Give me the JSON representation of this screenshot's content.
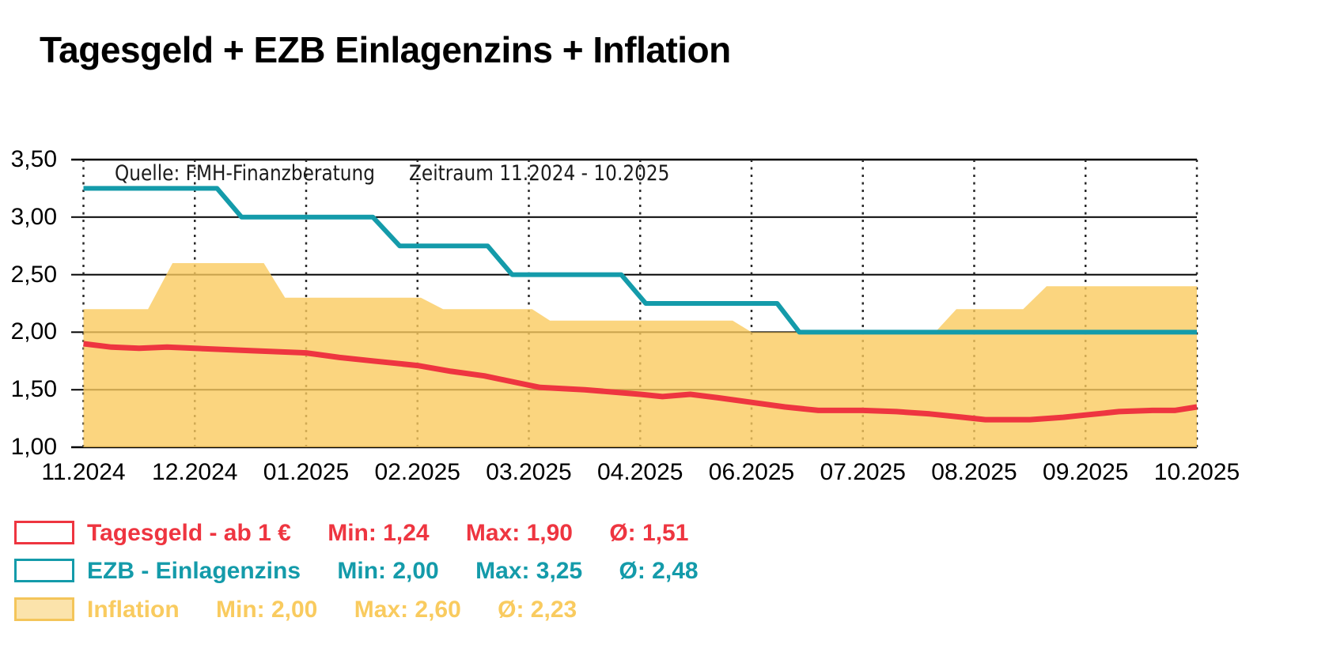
{
  "title": "Tagesgeld + EZB Einlagenzins + Inflation",
  "annotation": {
    "source": "Quelle: FMH-Finanzberatung",
    "period": "Zeitraum 11.2024 - 10.2025"
  },
  "chart_data": {
    "type": "line",
    "title": "Tagesgeld + EZB Einlagenzins + Inflation",
    "x_tick_labels": [
      "11.2024",
      "12.2024",
      "01.2025",
      "02.2025",
      "03.2025",
      "04.2025",
      "06.2025",
      "07.2025",
      "08.2025",
      "09.2025",
      "10.2025"
    ],
    "y_tick_labels": [
      "3,50",
      "3,00",
      "2,50",
      "2,00",
      "1,50",
      "1,00"
    ],
    "y_tick_values": [
      3.5,
      3.0,
      2.5,
      2.0,
      1.5,
      1.0
    ],
    "ylim": [
      1.0,
      3.5
    ],
    "grid": {
      "horizontal": "solid",
      "vertical": "dotted"
    },
    "x_unit_note": "x in tick units, 0 = 11.2024 tick, 10 = 10.2025 tick",
    "series": [
      {
        "name": "Inflation",
        "style": "area",
        "color": "#F9CB5F",
        "fill": "rgba(250,203,95,0.8)",
        "min": 2.0,
        "max": 2.6,
        "avg": 2.23,
        "points": [
          [
            0,
            2.2
          ],
          [
            0.58,
            2.2
          ],
          [
            0.8,
            2.6
          ],
          [
            1.62,
            2.6
          ],
          [
            1.81,
            2.3
          ],
          [
            3.03,
            2.3
          ],
          [
            3.23,
            2.2
          ],
          [
            4.03,
            2.2
          ],
          [
            4.19,
            2.1
          ],
          [
            5.83,
            2.1
          ],
          [
            6.0,
            2.0
          ],
          [
            7.65,
            2.0
          ],
          [
            7.84,
            2.2
          ],
          [
            8.44,
            2.2
          ],
          [
            8.65,
            2.4
          ],
          [
            10,
            2.4
          ]
        ]
      },
      {
        "name": "EZB - Einlagenzins",
        "style": "line",
        "color": "#149BAA",
        "width": 6,
        "min": 2.0,
        "max": 3.25,
        "avg": 2.48,
        "points": [
          [
            0,
            3.25
          ],
          [
            1.2,
            3.25
          ],
          [
            1.42,
            3.0
          ],
          [
            2.6,
            3.0
          ],
          [
            2.84,
            2.75
          ],
          [
            3.63,
            2.75
          ],
          [
            3.85,
            2.5
          ],
          [
            4.83,
            2.5
          ],
          [
            5.05,
            2.25
          ],
          [
            6.23,
            2.25
          ],
          [
            6.43,
            2.0
          ],
          [
            10,
            2.0
          ]
        ]
      },
      {
        "name": "Tagesgeld - ab 1 €",
        "style": "line",
        "color": "#EE3540",
        "width": 7,
        "min": 1.24,
        "max": 1.9,
        "avg": 1.51,
        "points": [
          [
            0,
            1.9
          ],
          [
            0.25,
            1.87
          ],
          [
            0.5,
            1.86
          ],
          [
            0.75,
            1.87
          ],
          [
            1.0,
            1.86
          ],
          [
            1.5,
            1.84
          ],
          [
            2.0,
            1.82
          ],
          [
            2.3,
            1.78
          ],
          [
            2.6,
            1.75
          ],
          [
            3.0,
            1.71
          ],
          [
            3.3,
            1.66
          ],
          [
            3.6,
            1.62
          ],
          [
            3.9,
            1.56
          ],
          [
            4.1,
            1.52
          ],
          [
            4.5,
            1.5
          ],
          [
            5.0,
            1.46
          ],
          [
            5.2,
            1.44
          ],
          [
            5.45,
            1.46
          ],
          [
            5.7,
            1.43
          ],
          [
            6.0,
            1.39
          ],
          [
            6.3,
            1.35
          ],
          [
            6.6,
            1.32
          ],
          [
            7.0,
            1.32
          ],
          [
            7.3,
            1.31
          ],
          [
            7.6,
            1.29
          ],
          [
            7.9,
            1.26
          ],
          [
            8.1,
            1.24
          ],
          [
            8.5,
            1.24
          ],
          [
            8.8,
            1.26
          ],
          [
            9.0,
            1.28
          ],
          [
            9.3,
            1.31
          ],
          [
            9.6,
            1.32
          ],
          [
            9.8,
            1.32
          ],
          [
            10,
            1.35
          ]
        ]
      }
    ]
  },
  "legend": {
    "rows": [
      {
        "label": "Tagesgeld - ab 1 €",
        "min": "Min: 1,24",
        "max": "Max: 1,90",
        "avg": "Ø: 1,51",
        "color": "#EE3540",
        "swatch_fill": "#FFFFFF",
        "swatch_border": "#EE3540"
      },
      {
        "label": "EZB - Einlagenzins",
        "min": "Min: 2,00",
        "max": "Max: 3,25",
        "avg": "Ø: 2,48",
        "color": "#149BAA",
        "swatch_fill": "#FFFFFF",
        "swatch_border": "#149BAA"
      },
      {
        "label": "Inflation",
        "min": "Min: 2,00",
        "max": "Max: 2,60",
        "avg": "Ø: 2,23",
        "color": "#F9CB5F",
        "swatch_fill": "#FBE3AB",
        "swatch_border": "#F4C55A"
      }
    ]
  }
}
